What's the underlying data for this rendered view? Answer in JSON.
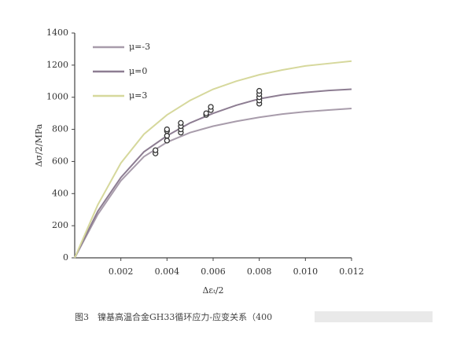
{
  "chart_data": {
    "type": "line",
    "xlabel": "Δεₜ/2",
    "ylabel": "Δσ/2/MPa",
    "caption": "图3　镍基高温合金GH33循环应力-应变关系（400",
    "x": [
      0,
      0.001,
      0.002,
      0.003,
      0.004,
      0.005,
      0.006,
      0.007,
      0.008,
      0.009,
      0.01,
      0.011,
      0.012
    ],
    "series": [
      {
        "name": "μ=-3",
        "color": "#a89cab",
        "values": [
          0,
          270,
          480,
          630,
          720,
          780,
          820,
          850,
          875,
          895,
          910,
          920,
          930
        ]
      },
      {
        "name": "μ=0",
        "color": "#8d7d92",
        "values": [
          0,
          290,
          500,
          660,
          760,
          840,
          900,
          950,
          990,
          1015,
          1030,
          1042,
          1050
        ]
      },
      {
        "name": "μ=3",
        "color": "#d6d89c",
        "values": [
          0,
          330,
          590,
          770,
          890,
          980,
          1050,
          1100,
          1140,
          1170,
          1195,
          1210,
          1225
        ]
      }
    ],
    "points": {
      "color": "#333333",
      "x": [
        0.0035,
        0.0035,
        0.004,
        0.004,
        0.004,
        0.004,
        0.0046,
        0.0046,
        0.0046,
        0.0046,
        0.0057,
        0.0057,
        0.0059,
        0.0059,
        0.008,
        0.008,
        0.008,
        0.008,
        0.008
      ],
      "y": [
        650,
        670,
        730,
        760,
        790,
        800,
        780,
        800,
        820,
        840,
        890,
        900,
        920,
        940,
        960,
        980,
        1000,
        1020,
        1040
      ]
    },
    "xlim": [
      0,
      0.012
    ],
    "ylim": [
      0,
      1400
    ],
    "xticks": [
      0.002,
      0.004,
      0.006,
      0.008,
      {
        "value": 0.01,
        "label": "0.010"
      },
      0.012
    ],
    "yticks": [
      0,
      200,
      400,
      600,
      800,
      1000,
      1200,
      1400
    ],
    "legend": "upper-left"
  }
}
